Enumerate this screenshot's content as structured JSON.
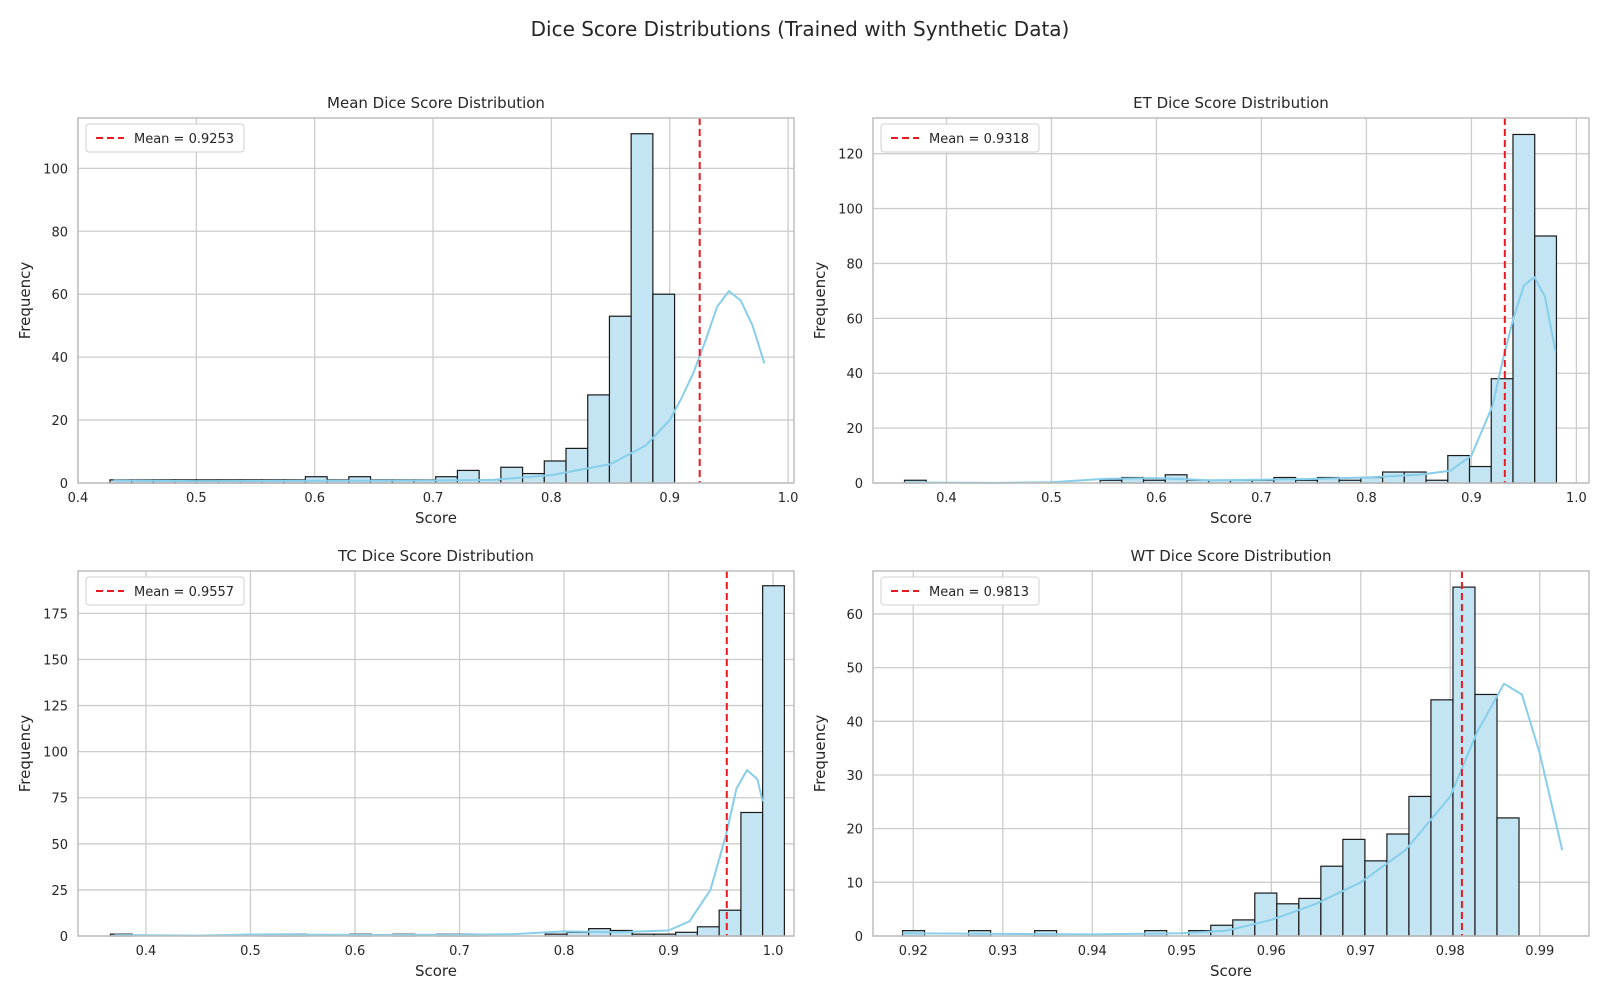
{
  "figure": {
    "title": "Dice Score Distributions (Trained with Synthetic Data)"
  },
  "colors": {
    "bar_fill": "#c3e4f2",
    "bar_edge": "#1a1a1a",
    "kde": "#87ceeb",
    "mean_line": "#e8191f",
    "grid": "#cccccc",
    "frame": "#bdbdbd"
  },
  "chart_data": [
    {
      "type": "bar",
      "title": "Mean Dice Score Distribution",
      "xlabel": "Score",
      "ylabel": "Frequency",
      "xlim": [
        0.4,
        1.005
      ],
      "ylim": [
        0,
        116
      ],
      "xticks": [
        0.4,
        0.5,
        0.6,
        0.7,
        0.8,
        0.9,
        1.0
      ],
      "xtick_labels": [
        "0.4",
        "0.5",
        "0.6",
        "0.7",
        "0.8",
        "0.9",
        "1.0"
      ],
      "yticks": [
        0,
        20,
        40,
        60,
        80,
        100
      ],
      "legend": {
        "label": "Mean = 0.9253",
        "placement": "top-left"
      },
      "mean": 0.9253,
      "bin_start": 0.427,
      "bin_width": 0.01835,
      "counts": [
        1,
        1,
        1,
        1,
        1,
        1,
        1,
        1,
        1,
        2,
        1,
        2,
        1,
        1,
        1,
        2,
        4,
        1,
        5,
        3,
        7,
        11,
        28,
        53,
        111,
        60
      ],
      "kde": [
        [
          0.43,
          0.8
        ],
        [
          0.5,
          0.6
        ],
        [
          0.6,
          0.7
        ],
        [
          0.7,
          0.8
        ],
        [
          0.75,
          1.0
        ],
        [
          0.8,
          2.5
        ],
        [
          0.85,
          6
        ],
        [
          0.88,
          12
        ],
        [
          0.9,
          20
        ],
        [
          0.91,
          27
        ],
        [
          0.92,
          35
        ],
        [
          0.93,
          45
        ],
        [
          0.94,
          56
        ],
        [
          0.95,
          61
        ],
        [
          0.96,
          58
        ],
        [
          0.97,
          50
        ],
        [
          0.98,
          38
        ]
      ]
    },
    {
      "type": "bar",
      "title": "ET Dice Score Distribution",
      "xlabel": "Score",
      "ylabel": "Frequency",
      "xlim": [
        0.33,
        1.012
      ],
      "ylim": [
        0,
        133
      ],
      "xticks": [
        0.4,
        0.5,
        0.6,
        0.7,
        0.8,
        0.9,
        1.0
      ],
      "xtick_labels": [
        "0.4",
        "0.5",
        "0.6",
        "0.7",
        "0.8",
        "0.9",
        "1.0"
      ],
      "yticks": [
        0,
        20,
        40,
        60,
        80,
        100,
        120
      ],
      "legend": {
        "label": "Mean = 0.9318",
        "placement": "top-left"
      },
      "mean": 0.9318,
      "bin_start": 0.36,
      "bin_width": 0.0207,
      "counts": [
        1,
        0,
        0,
        0,
        0,
        0,
        0,
        0,
        0,
        1,
        2,
        1,
        3,
        1,
        1,
        1,
        1,
        2,
        1,
        2,
        1,
        2,
        4,
        4,
        1,
        10,
        6,
        38,
        127,
        90
      ],
      "kde": [
        [
          0.36,
          0.2
        ],
        [
          0.45,
          0.05
        ],
        [
          0.5,
          0.3
        ],
        [
          0.55,
          1.5
        ],
        [
          0.6,
          1.8
        ],
        [
          0.65,
          1.0
        ],
        [
          0.7,
          1.2
        ],
        [
          0.75,
          1.5
        ],
        [
          0.8,
          2.0
        ],
        [
          0.85,
          3.0
        ],
        [
          0.88,
          4.5
        ],
        [
          0.9,
          10
        ],
        [
          0.92,
          28
        ],
        [
          0.93,
          45
        ],
        [
          0.94,
          60
        ],
        [
          0.95,
          72
        ],
        [
          0.96,
          75
        ],
        [
          0.97,
          68
        ],
        [
          0.98,
          48
        ]
      ]
    },
    {
      "type": "bar",
      "title": "TC Dice Score Distribution",
      "xlabel": "Score",
      "ylabel": "Frequency",
      "xlim": [
        0.335,
        1.02
      ],
      "ylim": [
        0,
        198
      ],
      "xticks": [
        0.4,
        0.5,
        0.6,
        0.7,
        0.8,
        0.9,
        1.0
      ],
      "xtick_labels": [
        "0.4",
        "0.5",
        "0.6",
        "0.7",
        "0.8",
        "0.9",
        "1.0"
      ],
      "yticks": [
        0,
        25,
        50,
        75,
        100,
        125,
        150,
        175
      ],
      "legend": {
        "label": "Mean = 0.9557",
        "placement": "top-left"
      },
      "mean": 0.9557,
      "bin_start": 0.366,
      "bin_width": 0.0208,
      "counts": [
        1,
        0,
        0,
        0,
        0,
        0,
        0,
        1,
        1,
        0,
        0,
        1,
        0,
        1,
        0,
        1,
        1,
        0,
        0,
        0,
        1,
        2,
        4,
        3,
        1,
        1,
        2,
        5,
        14,
        67,
        190
      ],
      "kde": [
        [
          0.37,
          0.5
        ],
        [
          0.45,
          0.2
        ],
        [
          0.5,
          0.8
        ],
        [
          0.6,
          0.6
        ],
        [
          0.7,
          0.7
        ],
        [
          0.75,
          1.0
        ],
        [
          0.8,
          2.5
        ],
        [
          0.85,
          2.0
        ],
        [
          0.9,
          3
        ],
        [
          0.92,
          8
        ],
        [
          0.94,
          25
        ],
        [
          0.955,
          55
        ],
        [
          0.965,
          80
        ],
        [
          0.975,
          90
        ],
        [
          0.985,
          85
        ],
        [
          0.99,
          73
        ]
      ]
    },
    {
      "type": "bar",
      "title": "WT Dice Score Distribution",
      "xlabel": "Score",
      "ylabel": "Frequency",
      "xlim": [
        0.9155,
        0.9955
      ],
      "ylim": [
        0,
        68
      ],
      "xticks": [
        0.92,
        0.93,
        0.94,
        0.95,
        0.96,
        0.97,
        0.98,
        0.99
      ],
      "xtick_labels": [
        "0.92",
        "0.93",
        "0.94",
        "0.95",
        "0.96",
        "0.97",
        "0.98",
        "0.99"
      ],
      "yticks": [
        0,
        10,
        20,
        30,
        40,
        50,
        60
      ],
      "legend": {
        "label": "Mean = 0.9813",
        "placement": "top-left"
      },
      "mean": 0.9813,
      "bin_start": 0.9188,
      "bin_width": 0.00246,
      "counts": [
        1,
        0,
        0,
        1,
        0,
        0,
        1,
        0,
        0,
        0,
        0,
        1,
        0,
        1,
        2,
        3,
        8,
        6,
        7,
        13,
        18,
        14,
        19,
        26,
        44,
        65,
        45,
        22
      ],
      "kde": [
        [
          0.9188,
          0.5
        ],
        [
          0.93,
          0.4
        ],
        [
          0.94,
          0.3
        ],
        [
          0.95,
          0.5
        ],
        [
          0.955,
          1
        ],
        [
          0.96,
          3
        ],
        [
          0.965,
          6
        ],
        [
          0.97,
          10
        ],
        [
          0.975,
          16
        ],
        [
          0.98,
          26
        ],
        [
          0.983,
          38
        ],
        [
          0.986,
          47
        ],
        [
          0.988,
          45
        ],
        [
          0.99,
          34
        ],
        [
          0.9925,
          16
        ]
      ]
    }
  ]
}
